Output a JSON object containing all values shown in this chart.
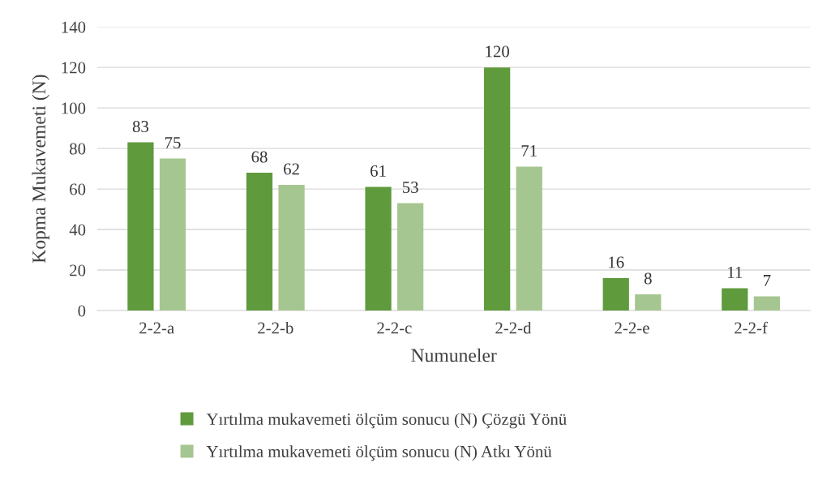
{
  "chart_data": {
    "type": "bar",
    "xlabel": "Numuneler",
    "ylabel": "Kopma Mukavemeti (N)",
    "categories": [
      "2-2-a",
      "2-2-b",
      "2-2-c",
      "2-2-d",
      "2-2-e",
      "2-2-f"
    ],
    "series": [
      {
        "name": "Yırtılma mukavemeti ölçüm sonucu (N) Çözgü Yönü",
        "color": "#5f9a3c",
        "values": [
          83,
          68,
          61,
          120,
          16,
          11
        ]
      },
      {
        "name": "Yırtılma mukavemeti ölçüm sonucu (N) Atkı Yönü",
        "color": "#a5c690",
        "values": [
          75,
          62,
          53,
          71,
          8,
          7
        ]
      }
    ],
    "ylim": [
      0,
      140
    ],
    "yticks": [
      0,
      20,
      40,
      60,
      80,
      100,
      120,
      140
    ],
    "grid": "y",
    "legend": "bottom",
    "data_labels": true
  }
}
